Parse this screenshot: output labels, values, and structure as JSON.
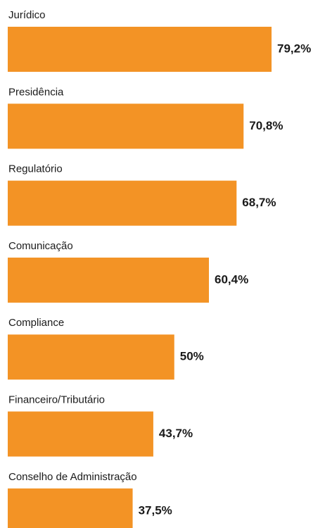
{
  "chart_data": {
    "type": "bar",
    "orientation": "horizontal",
    "categories": [
      "Jurídico",
      "Presidência",
      "Regulatório",
      "Comunicação",
      "Compliance",
      "Financeiro/Tributário",
      "Conselho de Administração"
    ],
    "values": [
      79.2,
      70.8,
      68.7,
      60.4,
      50,
      43.7,
      37.5
    ],
    "value_labels": [
      "79,2%",
      "70,8%",
      "68,7%",
      "60,4%",
      "50%",
      "43,7%",
      "37,5%"
    ],
    "color": "#f39325"
  }
}
